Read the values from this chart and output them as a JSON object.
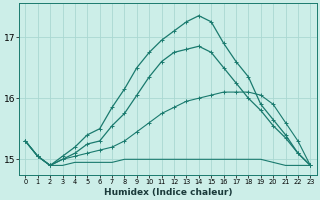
{
  "xlabel": "Humidex (Indice chaleur)",
  "background_color": "#cceee8",
  "grid_color": "#aad8d2",
  "line_color": "#1a7a6e",
  "x_ticks": [
    0,
    1,
    2,
    3,
    4,
    5,
    6,
    7,
    8,
    9,
    10,
    11,
    12,
    13,
    14,
    15,
    16,
    17,
    18,
    19,
    20,
    21,
    22,
    23
  ],
  "ylim": [
    14.75,
    17.55
  ],
  "y_ticks": [
    15,
    16,
    17
  ],
  "series": [
    {
      "y": [
        15.3,
        15.05,
        14.9,
        14.9,
        14.95,
        14.95,
        14.95,
        14.95,
        15.0,
        15.0,
        15.0,
        15.0,
        15.0,
        15.0,
        15.0,
        15.0,
        15.0,
        15.0,
        15.0,
        15.0,
        14.95,
        14.9,
        14.9,
        14.9
      ],
      "markers": false,
      "lw": 0.8
    },
    {
      "y": [
        15.3,
        15.05,
        14.9,
        15.0,
        15.05,
        15.1,
        15.15,
        15.2,
        15.3,
        15.45,
        15.6,
        15.75,
        15.85,
        15.95,
        16.0,
        16.05,
        16.1,
        16.1,
        16.1,
        16.05,
        15.9,
        15.6,
        15.3,
        14.9
      ],
      "markers": true,
      "lw": 0.8
    },
    {
      "y": [
        15.3,
        15.05,
        14.9,
        15.0,
        15.1,
        15.25,
        15.3,
        15.55,
        15.75,
        16.05,
        16.35,
        16.6,
        16.75,
        16.8,
        16.85,
        16.75,
        16.5,
        16.25,
        16.0,
        15.8,
        15.55,
        15.35,
        15.1,
        14.9
      ],
      "markers": true,
      "lw": 0.9
    },
    {
      "y": [
        15.3,
        15.05,
        14.9,
        15.05,
        15.2,
        15.4,
        15.5,
        15.85,
        16.15,
        16.5,
        16.75,
        16.95,
        17.1,
        17.25,
        17.35,
        17.25,
        16.9,
        16.6,
        16.35,
        15.9,
        15.65,
        15.4,
        15.1,
        14.9
      ],
      "markers": true,
      "lw": 0.9
    }
  ]
}
